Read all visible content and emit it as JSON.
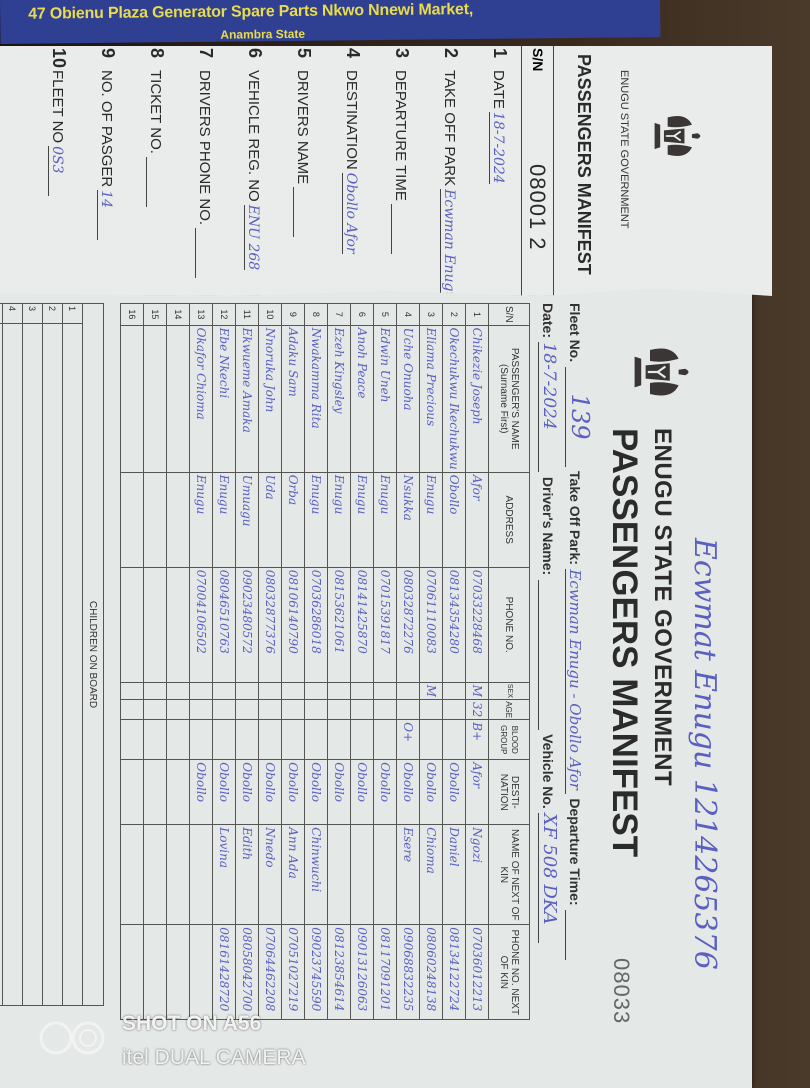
{
  "banner": {
    "line1": "47 Obienu Plaza Generator Spare Parts Nkwo Nnewi Market,",
    "line2": "Anambra State"
  },
  "slip": {
    "gov": "ENUGU STATE GOVERNMENT",
    "title": "PASSENGERS MANIFEST",
    "sn_label": "S/N",
    "serial": "08001 2",
    "fields": [
      {
        "n": "1",
        "label": "DATE",
        "value": "18-7-2024"
      },
      {
        "n": "2",
        "label": "TAKE OFF PARK",
        "value": "Ecwman Enugu"
      },
      {
        "n": "3",
        "label": "DEPARTURE TIME",
        "value": ""
      },
      {
        "n": "4",
        "label": "DESTINATION",
        "value": "Obollo Afor"
      },
      {
        "n": "5",
        "label": "DRIVERS NAME",
        "value": ""
      },
      {
        "n": "6",
        "label": "VEHICLE REG. NO",
        "value": "ENU 268"
      },
      {
        "n": "7",
        "label": "DRIVERS PHONE NO.",
        "value": ""
      },
      {
        "n": "8",
        "label": "TICKET NO.",
        "value": ""
      },
      {
        "n": "9",
        "label": "NO. OF PASGER",
        "value": "14"
      },
      {
        "n": "10",
        "label": "FLEET NO",
        "value": "0S3"
      }
    ]
  },
  "form": {
    "handwritten_header": "Ecwmat Enugu 1214265376",
    "gov": "ENUGU STATE GOVERNMENT",
    "title": "PASSENGERS MANIFEST",
    "serial": "08033",
    "fleet_label": "Fleet No.",
    "fleet_value": "139",
    "park_label": "Take Off Park:",
    "park_value": "Ecwman Enugu - Obollo Afor",
    "departure_label": "Departure Time:",
    "date_label": "Date:",
    "date_value": "18-7-2024",
    "driver_label": "Driver's Name:",
    "vehicle_label": "Vehicle No.",
    "vehicle_value": "XF 508 DKA",
    "columns": [
      "S/N",
      "PASSENGER'S NAME (Surname First)",
      "ADDRESS",
      "PHONE NO.",
      "SEX",
      "AGE",
      "BLOOD GROUP",
      "DESTI-NATION",
      "NAME OF NEXT OF KIN",
      "PHONE NO. NEXT OF KIN"
    ],
    "rows": [
      [
        "1",
        "Chikezie Joseph",
        "Afor",
        "07033228468",
        "M",
        "32",
        "B+",
        "Afor",
        "Ngozi",
        "07036012213"
      ],
      [
        "2",
        "Okechukwu Ikechukwu",
        "Obollo",
        "08134354280",
        "",
        "",
        "",
        "Obollo",
        "Daniel",
        "08134122724"
      ],
      [
        "3",
        "Eliama Precious",
        "Enugu",
        "07061110083",
        "M",
        "",
        "",
        "Obollo",
        "Chioma",
        "08060248138"
      ],
      [
        "4",
        "Uche Onuoha",
        "Nsukka",
        "08032872276",
        "",
        "",
        "O+",
        "Obollo",
        "Esere",
        "09068832235"
      ],
      [
        "5",
        "Edwin Uneh",
        "Enugu",
        "07015391817",
        "",
        "",
        "",
        "Obollo",
        "",
        "08117091201"
      ],
      [
        "6",
        "Anoh Peace",
        "Enugu",
        "08141425870",
        "",
        "",
        "",
        "Obollo",
        "",
        "09013126063"
      ],
      [
        "7",
        "Ezeh Kingsley",
        "Enugu",
        "08153621061",
        "",
        "",
        "",
        "Obollo",
        "",
        "08123854614"
      ],
      [
        "8",
        "Nwakamma Rita",
        "Enugu",
        "07036286018",
        "",
        "",
        "",
        "Obollo",
        "Chinwuchi",
        "09023745590"
      ],
      [
        "9",
        "Adaku Sam",
        "Orba",
        "08106140790",
        "",
        "",
        "",
        "Obollo",
        "Ann Ada",
        "07051027219"
      ],
      [
        "10",
        "Nnoruka John",
        "Uda",
        "08032877376",
        "",
        "",
        "",
        "Obollo",
        "Nnedo",
        "07064462208"
      ],
      [
        "11",
        "Ekwueme Amaka",
        "Umuagu",
        "09023480572",
        "",
        "",
        "",
        "Obollo",
        "Edith",
        "08058042700"
      ],
      [
        "12",
        "Ebe Nkechi",
        "Enugu",
        "08046510763",
        "",
        "",
        "",
        "Obollo",
        "Lovina",
        "08161428720"
      ],
      [
        "13",
        "Okafor Chioma",
        "Enugu",
        "07004106502",
        "",
        "",
        "",
        "Obollo",
        "",
        ""
      ],
      [
        "14",
        "",
        "",
        "",
        "",
        "",
        "",
        "",
        "",
        ""
      ],
      [
        "15",
        "",
        "",
        "",
        "",
        "",
        "",
        "",
        "",
        ""
      ],
      [
        "16",
        "",
        "",
        "",
        "",
        "",
        "",
        "",
        "",
        ""
      ]
    ],
    "children_label": "CHILDREN ON BOARD",
    "children_rows": [
      "1",
      "2",
      "3",
      "4",
      "5"
    ]
  },
  "watermark": {
    "line1": "SHOT ON A56",
    "line2": "itel DUAL CAMERA"
  },
  "colors": {
    "ink": "#5960c2",
    "paper": "#e4e8e6",
    "banner": "#2f3f92",
    "banner_text": "#e9dc4c"
  }
}
